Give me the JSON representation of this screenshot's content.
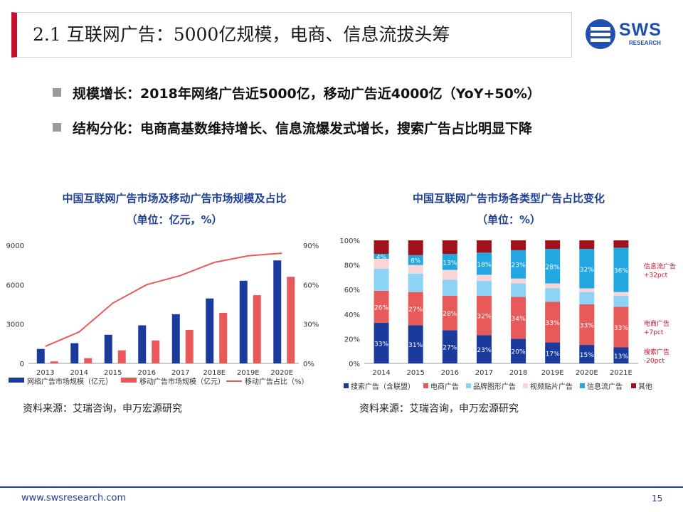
{
  "slide": {
    "title": "2.1 互联网广告：5000亿规模，电商、信息流拔头筹",
    "logo_text": "SWS",
    "logo_sub": "RESEARCH",
    "bullets": [
      "规模增长：2018年网络广告近5000亿，移动广告近4000亿（YoY+50%）",
      "结构分化：电商高基数维持增长、信息流爆发式增长，搜索广告占比明显下降"
    ],
    "footer_url": "www.swsresearch.com",
    "page_number": "15",
    "colors": {
      "brand_red": "#c8102e",
      "brand_blue": "#1f3f93"
    }
  },
  "chart_data": [
    {
      "type": "bar",
      "title_line1": "中国互联网广告市场及移动广告市场规模及占比",
      "title_line2": "（单位：亿元，%）",
      "categories": [
        "2013",
        "2014",
        "2015",
        "2016",
        "2017",
        "2018E",
        "2019E",
        "2020E"
      ],
      "series": [
        {
          "name": "网络广告市场规模（亿元）",
          "kind": "bar",
          "axis": "left",
          "color": "#1a3a9c",
          "values": [
            1100,
            1540,
            2180,
            2900,
            3750,
            4950,
            6300,
            7850
          ]
        },
        {
          "name": "移动广告市场规模（亿元）",
          "kind": "bar",
          "axis": "left",
          "color": "#e85a5a",
          "values": [
            150,
            400,
            1000,
            1750,
            2550,
            3850,
            5200,
            6600
          ]
        },
        {
          "name": "移动广告占比（%）",
          "kind": "line",
          "axis": "right",
          "color": "#e85a5a",
          "values": [
            13,
            24,
            46,
            60,
            67,
            77,
            82,
            84
          ]
        }
      ],
      "y_left": {
        "min": 0,
        "max": 9000,
        "ticks": [
          "0",
          "3000",
          "6000",
          "9000"
        ]
      },
      "y_right": {
        "min": 0,
        "max": 90,
        "ticks": [
          "0%",
          "30%",
          "60%",
          "90%"
        ]
      },
      "source": "资料来源：艾瑞咨询，申万宏源研究"
    },
    {
      "type": "bar",
      "stacked": true,
      "title_line1": "中国互联网广告市场各类型广告占比变化",
      "title_line2": "（单位：%）",
      "categories": [
        "2014",
        "2015",
        "2016",
        "2017",
        "2018",
        "2019E",
        "2020E",
        "2021E"
      ],
      "series": [
        {
          "name": "搜索广告（含联盟）",
          "color": "#1a3a9c",
          "values": [
            33,
            31,
            27,
            23,
            20,
            17,
            15,
            13
          ]
        },
        {
          "name": "电商广告",
          "color": "#e85a5a",
          "values": [
            26,
            27,
            28,
            32,
            34,
            33,
            33,
            33
          ]
        },
        {
          "name": "品牌图形广告",
          "color": "#8dd3f5",
          "values": [
            18,
            15,
            13,
            12,
            11,
            11,
            10,
            9
          ]
        },
        {
          "name": "视频贴片广告",
          "color": "#f9d5d8",
          "values": [
            8,
            7,
            8,
            5,
            4,
            4,
            3,
            3
          ]
        },
        {
          "name": "信息流广告",
          "color": "#22a7e0",
          "values": [
            4,
            8,
            13,
            18,
            23,
            28,
            32,
            36
          ]
        },
        {
          "name": "其他",
          "color": "#a0111c",
          "values": [
            11,
            12,
            11,
            10,
            8,
            7,
            7,
            6
          ]
        }
      ],
      "data_labels": {
        "搜索广告（含联盟）": [
          "33%",
          "31%",
          "27%",
          "23%",
          "20%",
          "17%",
          "15%",
          "13%"
        ],
        "电商广告": [
          "26%",
          "27%",
          "28%",
          "32%",
          "34%",
          "33%",
          "33%",
          "33%"
        ],
        "信息流广告": [
          "4%",
          "8%",
          "13%",
          "18%",
          "23%",
          "28%",
          "32%",
          "36%"
        ]
      },
      "y_axis": {
        "min": 0,
        "max": 100,
        "ticks": [
          "0%",
          "20%",
          "40%",
          "60%",
          "80%",
          "100%"
        ]
      },
      "annotations": [
        {
          "series": "信息流广告",
          "line1": "信息流广告",
          "line2": "+32pct",
          "color": "#c8102e"
        },
        {
          "series": "电商广告",
          "line1": "电商广告",
          "line2": "+7pct",
          "color": "#c8102e"
        },
        {
          "series": "搜索广告（含联盟）",
          "line1": "搜索广告",
          "line2": "-20pct",
          "color": "#c8102e"
        }
      ],
      "source": "资料来源：艾瑞咨询，申万宏源研究"
    }
  ]
}
